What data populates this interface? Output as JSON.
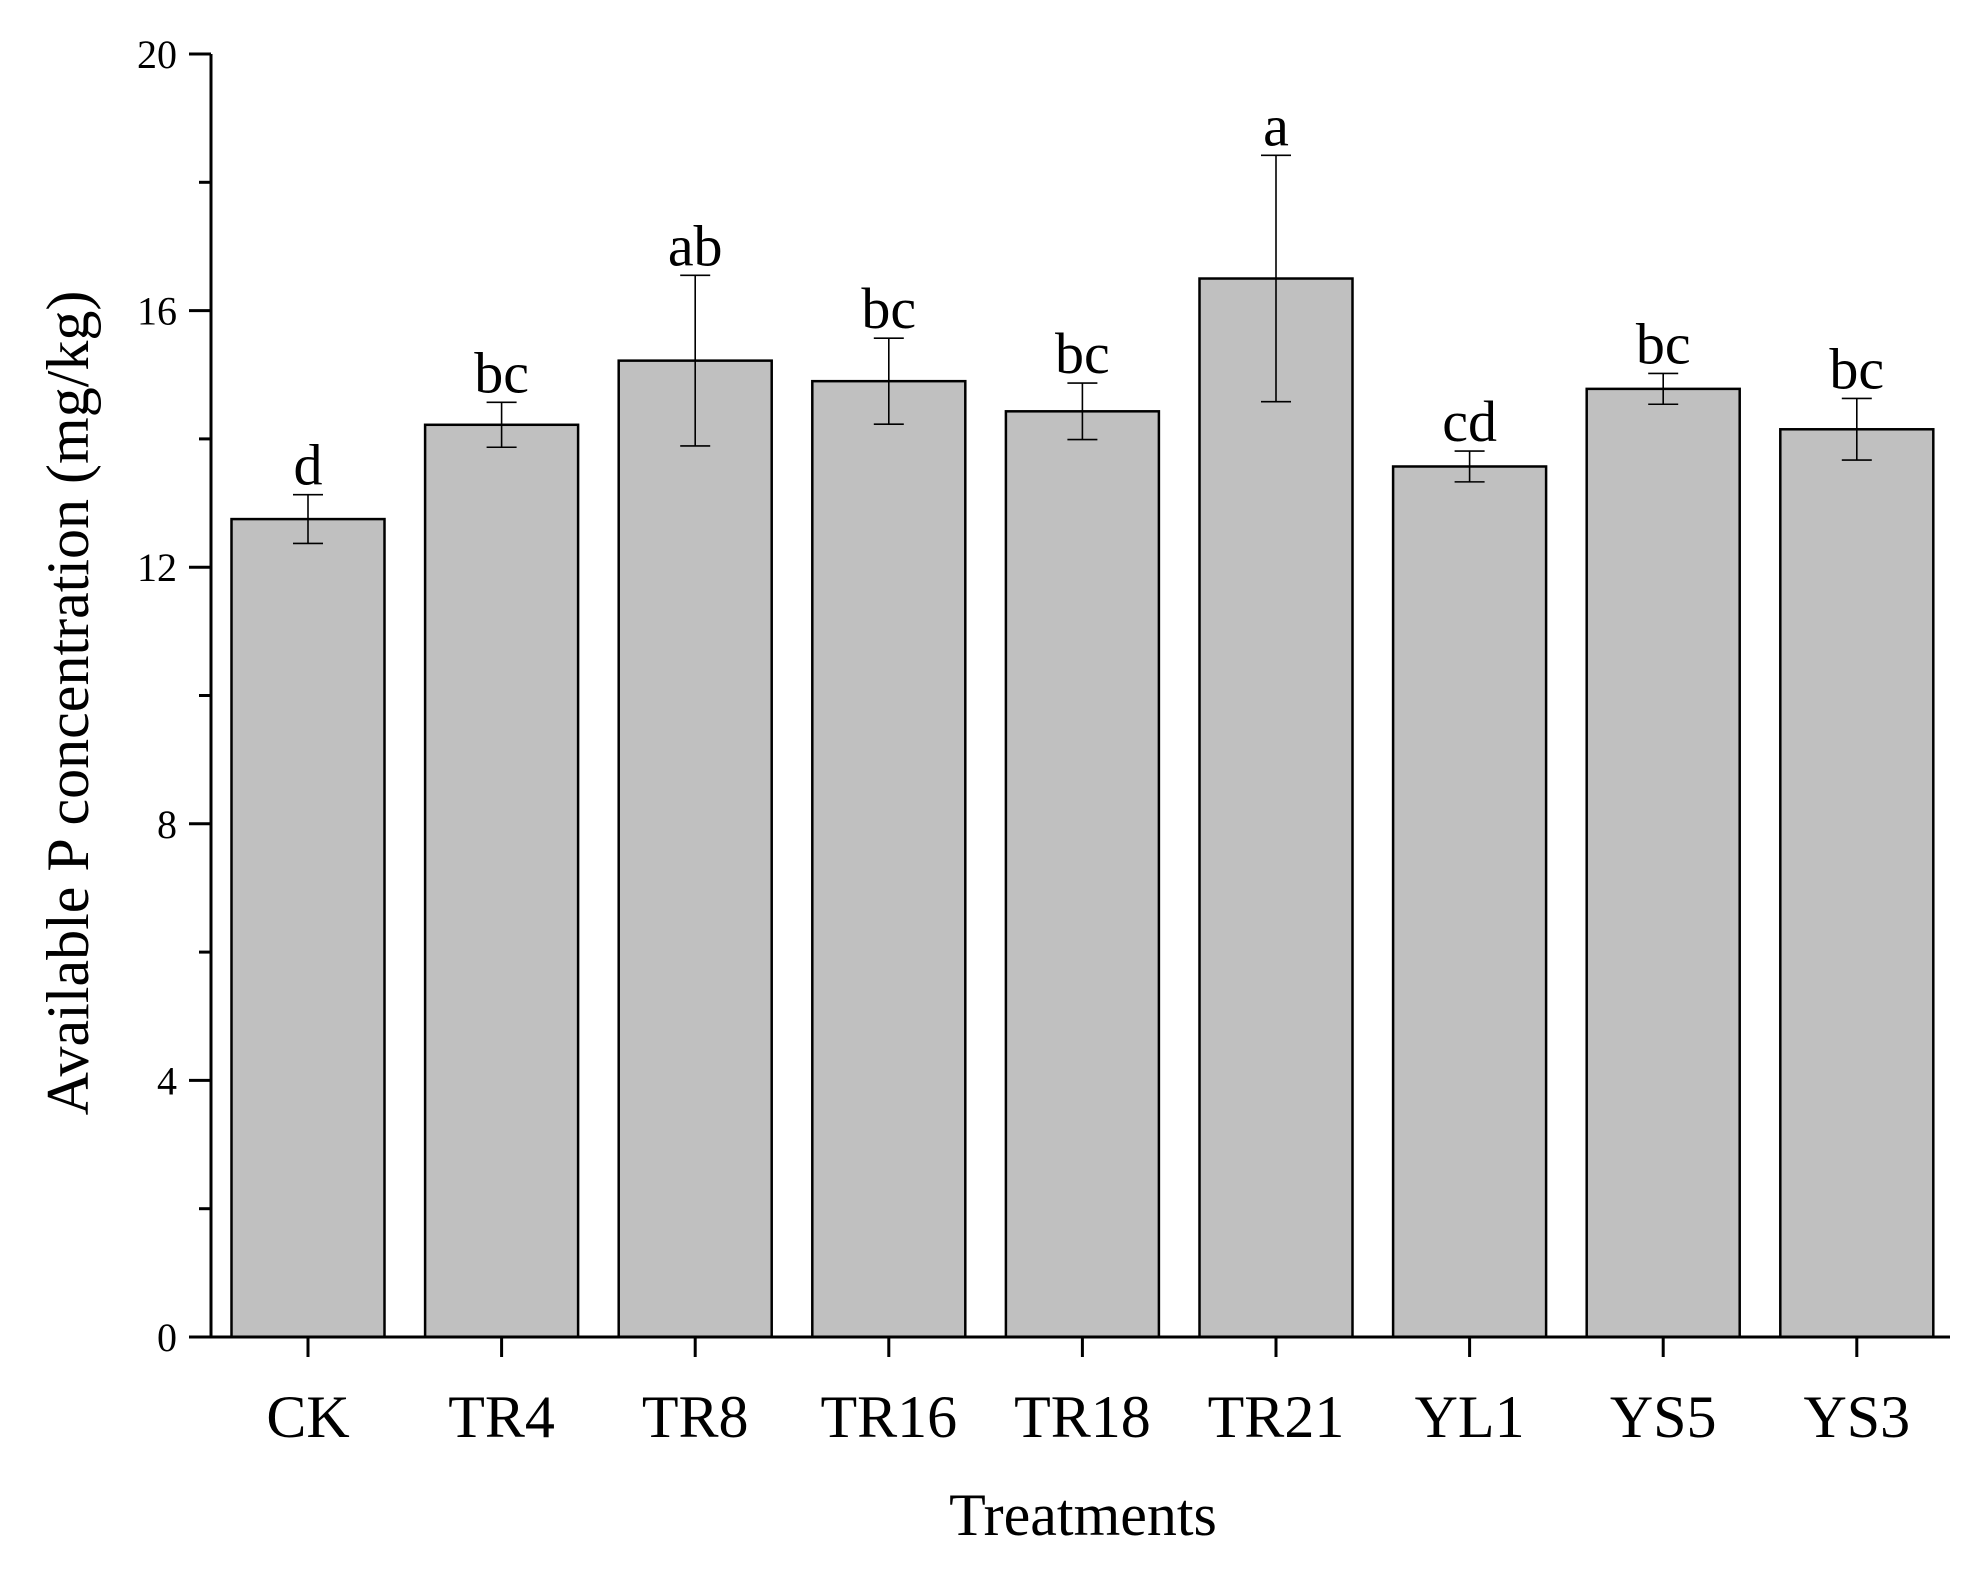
{
  "chart_data": {
    "type": "bar",
    "categories": [
      "CK",
      "TR4",
      "TR8",
      "TR16",
      "TR18",
      "TR21",
      "YL1",
      "YS5",
      "YS3"
    ],
    "values": [
      12.75,
      14.22,
      15.22,
      14.9,
      14.43,
      16.5,
      13.57,
      14.78,
      14.15
    ],
    "errors": [
      0.38,
      0.35,
      1.33,
      0.67,
      0.44,
      1.92,
      0.24,
      0.24,
      0.48
    ],
    "significance": [
      "d",
      "bc",
      "ab",
      "bc",
      "bc",
      "a",
      "cd",
      "bc",
      "bc"
    ],
    "xlabel": "Treatments",
    "ylabel": "Available P concentration (mg/kg)",
    "ylim": [
      0,
      20
    ],
    "yticks": [
      0,
      4,
      8,
      12,
      16,
      20
    ],
    "yticklabels": [
      "0",
      "4",
      "8",
      "12",
      "16",
      "20"
    ],
    "bar_color": "#c0c0c0",
    "grid": false,
    "legend": "none"
  }
}
